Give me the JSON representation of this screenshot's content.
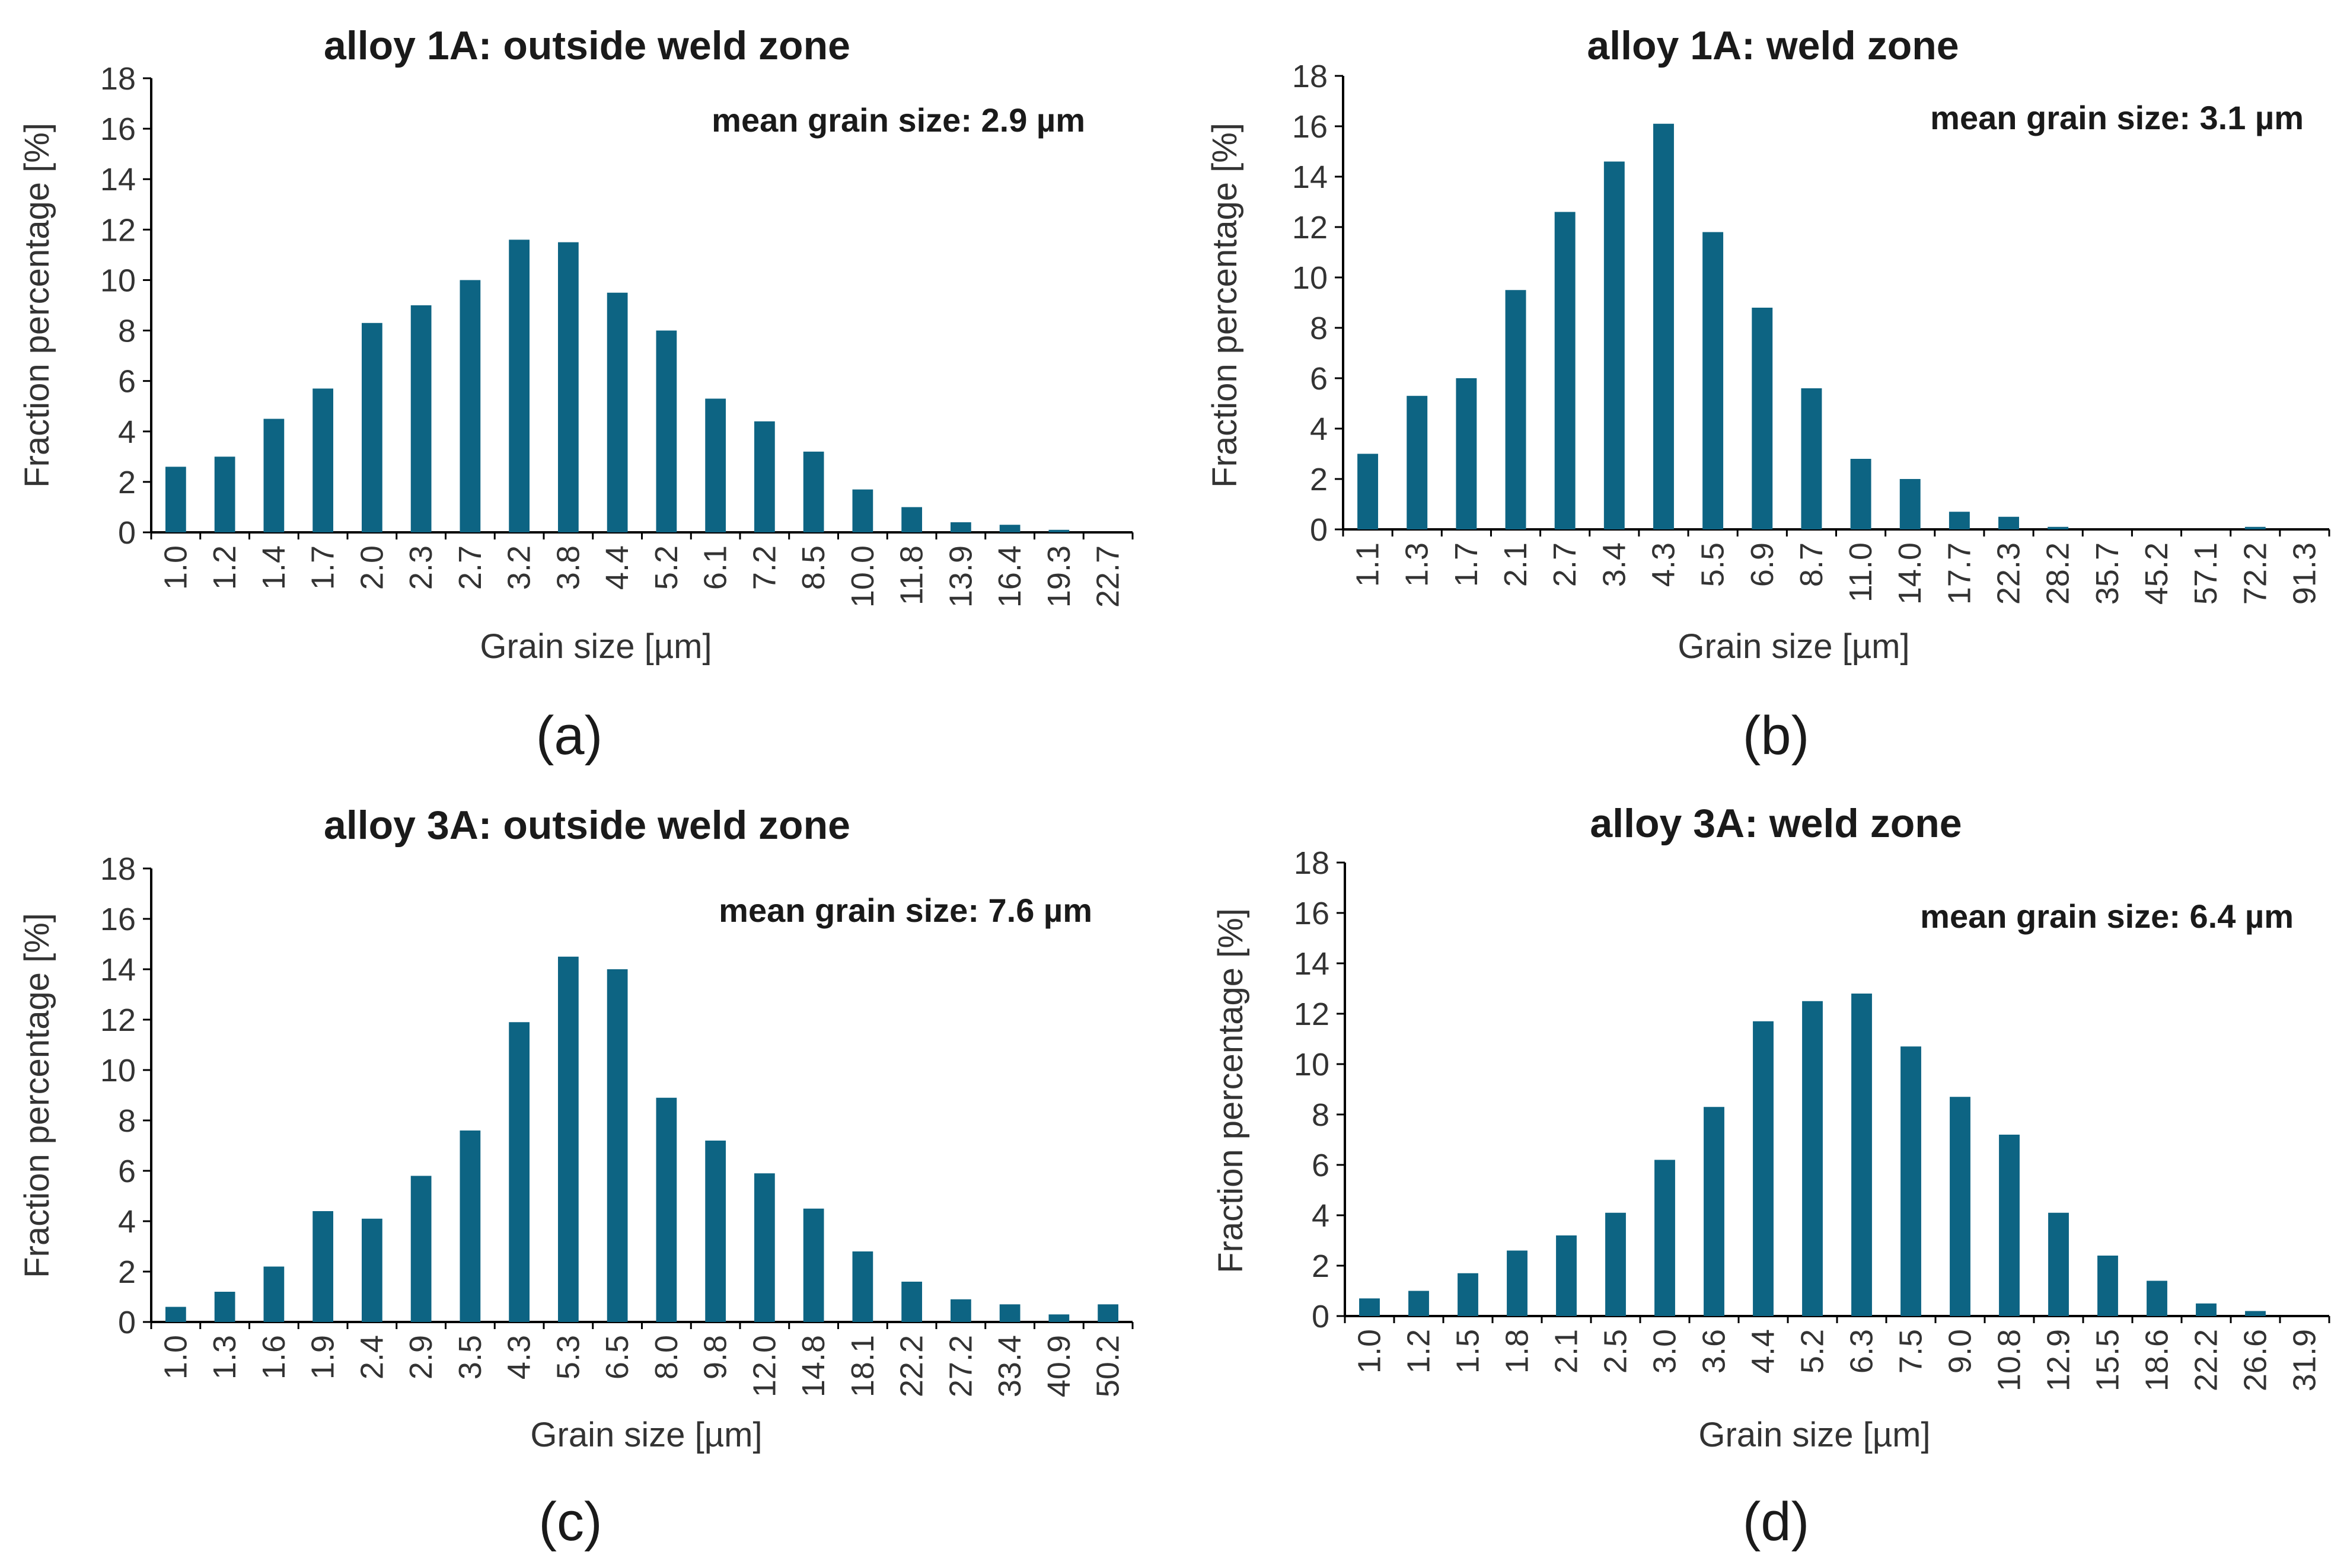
{
  "colors": {
    "bar": "#0d6483",
    "axis": "#000000",
    "text": "#1a1a1a"
  },
  "chart_data": [
    {
      "type": "bar",
      "panel": "(a)",
      "title": "alloy 1A: outside weld zone",
      "annotation": "mean grain size: 2.9 µm",
      "xlabel": "Grain size [µm]",
      "ylabel": "Fraction percentage [%]",
      "ylim": [
        0,
        18
      ],
      "yticks": [
        0,
        2,
        4,
        6,
        8,
        10,
        12,
        14,
        16,
        18
      ],
      "categories": [
        "1.0",
        "1.2",
        "1.4",
        "1.7",
        "2.0",
        "2.3",
        "2.7",
        "3.2",
        "3.8",
        "4.4",
        "5.2",
        "6.1",
        "7.2",
        "8.5",
        "10.0",
        "11.8",
        "13.9",
        "16.4",
        "19.3",
        "22.7"
      ],
      "values": [
        2.6,
        3.0,
        4.5,
        5.7,
        8.3,
        9.0,
        10.0,
        11.6,
        11.5,
        9.5,
        8.0,
        5.3,
        4.4,
        3.2,
        1.7,
        1.0,
        0.4,
        0.3,
        0.1,
        0.0
      ]
    },
    {
      "type": "bar",
      "panel": "(b)",
      "title": "alloy 1A: weld zone",
      "annotation": "mean grain size: 3.1 µm",
      "xlabel": "Grain size [µm]",
      "ylabel": "Fraction percentage [%]",
      "ylim": [
        0,
        18
      ],
      "yticks": [
        0,
        2,
        4,
        6,
        8,
        10,
        12,
        14,
        16,
        18
      ],
      "categories": [
        "1.1",
        "1.3",
        "1.7",
        "2.1",
        "2.7",
        "3.4",
        "4.3",
        "5.5",
        "6.9",
        "8.7",
        "11.0",
        "14.0",
        "17.7",
        "22.3",
        "28.2",
        "35.7",
        "45.2",
        "57.1",
        "72.2",
        "91.3"
      ],
      "values": [
        3.0,
        5.3,
        6.0,
        9.5,
        12.6,
        14.6,
        16.1,
        11.8,
        8.8,
        5.6,
        2.8,
        2.0,
        0.7,
        0.5,
        0.1,
        0.0,
        0.0,
        0.0,
        0.1,
        0.0
      ]
    },
    {
      "type": "bar",
      "panel": "(c)",
      "title": "alloy 3A: outside weld zone",
      "annotation": "mean grain size: 7.6 µm",
      "xlabel": "Grain size [µm]",
      "ylabel": "Fraction percentage [%]",
      "ylim": [
        0,
        18
      ],
      "yticks": [
        0,
        2,
        4,
        6,
        8,
        10,
        12,
        14,
        16,
        18
      ],
      "categories": [
        "1.0",
        "1.3",
        "1.6",
        "1.9",
        "2.4",
        "2.9",
        "3.5",
        "4.3",
        "5.3",
        "6.5",
        "8.0",
        "9.8",
        "12.0",
        "14.8",
        "18.1",
        "22.2",
        "27.2",
        "33.4",
        "40.9",
        "50.2"
      ],
      "values": [
        0.6,
        1.2,
        2.2,
        4.4,
        4.1,
        5.8,
        7.6,
        11.9,
        14.5,
        14.0,
        8.9,
        7.2,
        5.9,
        4.5,
        2.8,
        1.6,
        0.9,
        0.7,
        0.3,
        0.7
      ]
    },
    {
      "type": "bar",
      "panel": "(d)",
      "title": "alloy 3A:  weld zone",
      "annotation": "mean grain size: 6.4 µm",
      "xlabel": "Grain size [µm]",
      "ylabel": "Fraction percentage [%]",
      "ylim": [
        0,
        18
      ],
      "yticks": [
        0,
        2,
        4,
        6,
        8,
        10,
        12,
        14,
        16,
        18
      ],
      "categories": [
        "1.0",
        "1.2",
        "1.5",
        "1.8",
        "2.1",
        "2.5",
        "3.0",
        "3.6",
        "4.4",
        "5.2",
        "6.3",
        "7.5",
        "9.0",
        "10.8",
        "12.9",
        "15.5",
        "18.6",
        "22.2",
        "26.6",
        "31.9"
      ],
      "values": [
        0.7,
        1.0,
        1.7,
        2.6,
        3.2,
        4.1,
        6.2,
        8.3,
        11.7,
        12.5,
        12.8,
        10.7,
        8.7,
        7.2,
        4.1,
        2.4,
        1.4,
        0.5,
        0.2,
        0.0
      ]
    }
  ]
}
